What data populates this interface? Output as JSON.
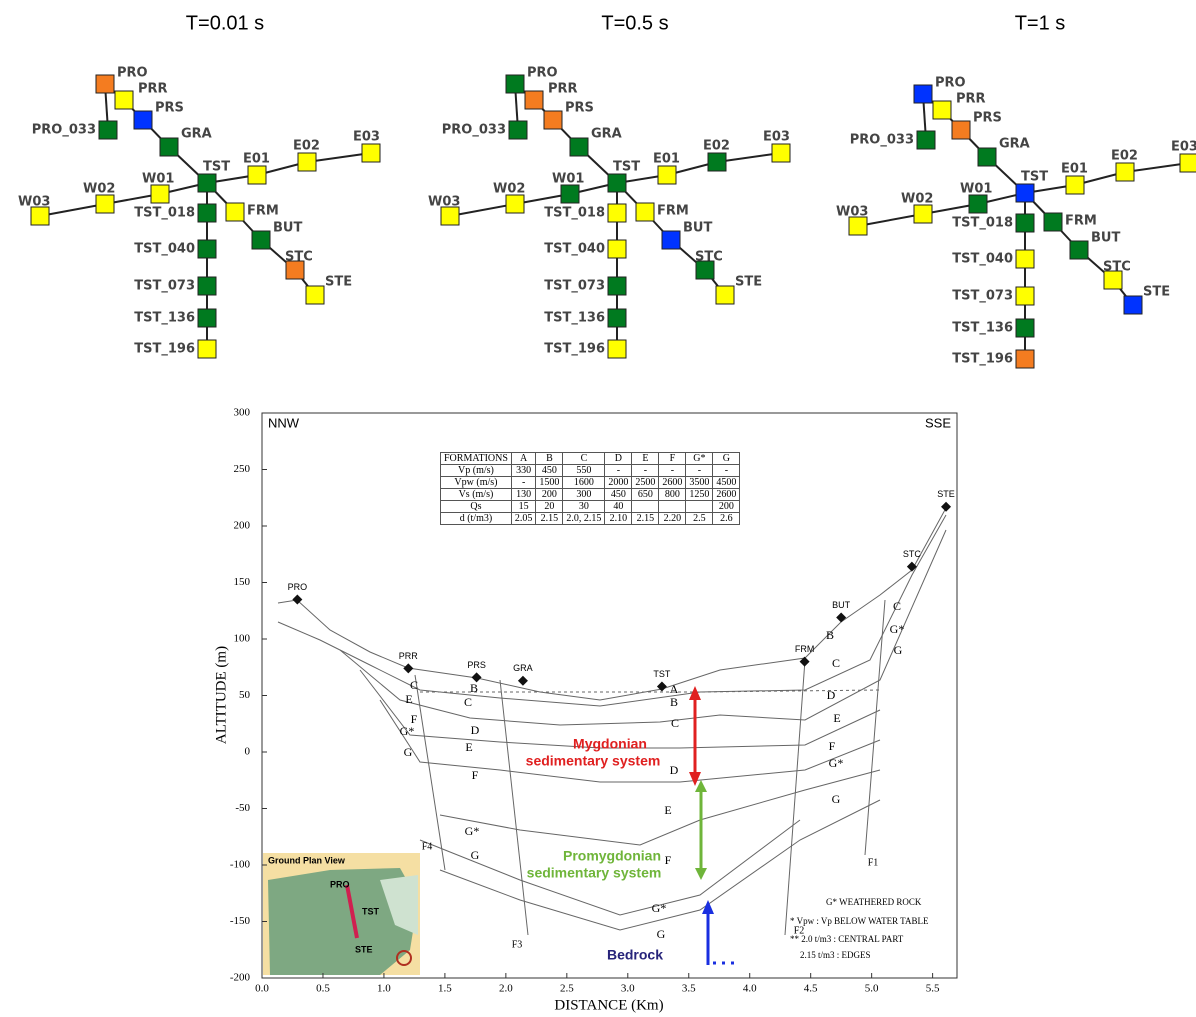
{
  "networks": {
    "node_labels": [
      "PRO",
      "PRR",
      "PRS",
      "PRO_033",
      "GRA",
      "TST",
      "E01",
      "E02",
      "E03",
      "W01",
      "W02",
      "W03",
      "TST_018",
      "TST_040",
      "TST_073",
      "TST_136",
      "TST_196",
      "FRM",
      "BUT",
      "STC",
      "STE"
    ],
    "panels": [
      {
        "title": "T=0.01 s",
        "colors": [
          "#f47c20",
          "#ffff00",
          "#0033ff",
          "#007a1f",
          "#007a1f",
          "#007a1f",
          "#ffff00",
          "#ffff00",
          "#ffff00",
          "#ffff00",
          "#ffff00",
          "#ffff00",
          "#007a1f",
          "#007a1f",
          "#007a1f",
          "#007a1f",
          "#ffff00",
          "#ffff00",
          "#007a1f",
          "#f47c20",
          "#ffff00"
        ]
      },
      {
        "title": "T=0.5 s",
        "colors": [
          "#007a1f",
          "#f47c20",
          "#f47c20",
          "#007a1f",
          "#007a1f",
          "#007a1f",
          "#ffff00",
          "#007a1f",
          "#ffff00",
          "#007a1f",
          "#ffff00",
          "#ffff00",
          "#ffff00",
          "#ffff00",
          "#007a1f",
          "#007a1f",
          "#ffff00",
          "#ffff00",
          "#0033ff",
          "#007a1f",
          "#ffff00"
        ]
      },
      {
        "title": "T=1 s",
        "colors": [
          "#0033ff",
          "#ffff00",
          "#f47c20",
          "#007a1f",
          "#007a1f",
          "#0033ff",
          "#ffff00",
          "#ffff00",
          "#ffff00",
          "#007a1f",
          "#ffff00",
          "#ffff00",
          "#007a1f",
          "#ffff00",
          "#ffff00",
          "#007a1f",
          "#f47c20",
          "#007a1f",
          "#007a1f",
          "#ffff00",
          "#0033ff"
        ]
      }
    ]
  },
  "chart_data": {
    "type": "cross-section",
    "xlabel": "DISTANCE (Km)",
    "ylabel": "ALTITUDE (m)",
    "xlim": [
      0,
      5.7
    ],
    "ylim": [
      -200,
      300
    ],
    "xticks": [
      {
        "value": 0,
        "label": "0.0"
      },
      {
        "value": 0.5,
        "label": "0.5"
      },
      {
        "value": 1,
        "label": "1.0"
      },
      {
        "value": 1.5,
        "label": "1.5"
      },
      {
        "value": 2,
        "label": "2.0"
      },
      {
        "value": 2.5,
        "label": "2.5"
      },
      {
        "value": 3,
        "label": "3.0"
      },
      {
        "value": 3.5,
        "label": "3.5"
      },
      {
        "value": 4,
        "label": "4.0"
      },
      {
        "value": 4.5,
        "label": "4.5"
      },
      {
        "value": 5,
        "label": "5.0"
      },
      {
        "value": 5.5,
        "label": "5.5"
      }
    ],
    "yticks": [
      300,
      250,
      200,
      150,
      100,
      50,
      0,
      -50,
      -100,
      -150,
      -200
    ],
    "corner_left": "NNW",
    "corner_right": "SSE",
    "stations": {
      "labels": [
        "PRO",
        "PRR",
        "PRS",
        "GRA",
        "TST",
        "FRM",
        "BUT",
        "STC",
        "STE"
      ],
      "x": [
        0.29,
        1.2,
        1.76,
        2.14,
        3.28,
        4.45,
        4.75,
        5.33,
        5.61
      ],
      "y": [
        135,
        74,
        66,
        63,
        58,
        80,
        119,
        164,
        217
      ]
    },
    "formation_labels": [
      "C",
      "E",
      "F",
      "G*",
      "G",
      "B",
      "C",
      "D",
      "E",
      "F",
      "G*",
      "G",
      "A",
      "B",
      "C",
      "D",
      "E",
      "F",
      "G*",
      "G",
      "B",
      "C",
      "D",
      "E",
      "F",
      "G*",
      "G",
      "C",
      "G*",
      "G"
    ],
    "faults": [
      "F4",
      "F3",
      "F2",
      "F1"
    ],
    "annotations": {
      "mygdonian": [
        "Mygdonian",
        "sedimentary system"
      ],
      "promygdonian": [
        "Promygdonian",
        "sedimentary system"
      ],
      "bedrock": "Bedrock"
    },
    "notes": [
      "G* WEATHERED ROCK",
      "* Vpw : Vp BELOW WATER TABLE",
      "** 2.0 t/m3 : CENTRAL PART",
      "2.15 t/m3 : EDGES"
    ],
    "inset": {
      "title": "Ground Plan View",
      "labels": [
        "PRO",
        "TST",
        "STE"
      ]
    },
    "table": [
      [
        "FORMATIONS",
        "A",
        "B",
        "C",
        "D",
        "E",
        "F",
        "G*",
        "G"
      ],
      [
        "Vp (m/s)",
        "330",
        "450",
        "550",
        "-",
        "-",
        "-",
        "-",
        "-"
      ],
      [
        "Vpw (m/s)",
        "-",
        "1500",
        "1600",
        "2000",
        "2500",
        "2600",
        "3500",
        "4500"
      ],
      [
        "Vs (m/s)",
        "130",
        "200",
        "300",
        "450",
        "650",
        "800",
        "1250",
        "2600"
      ],
      [
        "Qs",
        "15",
        "20",
        "30",
        "40",
        null,
        null,
        null,
        "200"
      ],
      [
        "d (t/m3)",
        "2.05",
        "2.15",
        "2.0, 2.15",
        "2.10",
        "2.15",
        "2.20",
        "2.5",
        "2.6"
      ]
    ]
  }
}
